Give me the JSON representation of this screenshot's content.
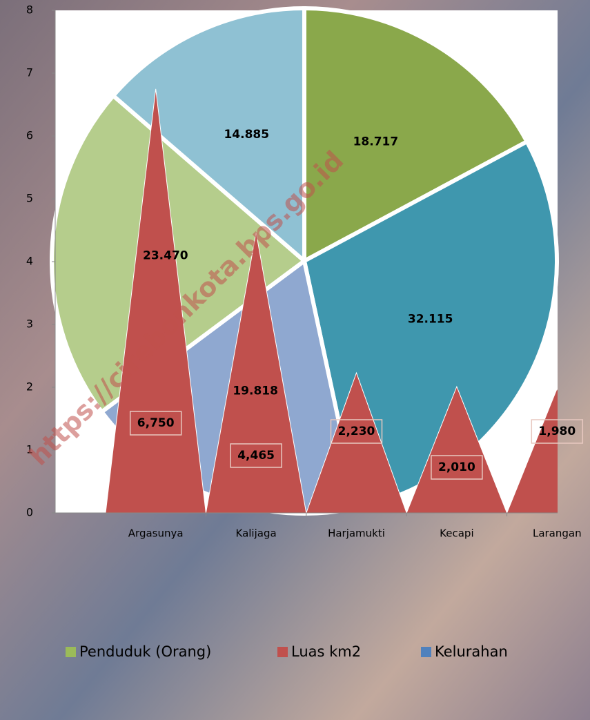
{
  "chart_data": [
    {
      "type": "pie",
      "values": [
        18717,
        32115,
        19818,
        23470,
        14885
      ],
      "value_labels": [
        "18.717",
        "32.115",
        "19.818",
        "23.470",
        "14.885"
      ],
      "colors": [
        "#8aa84b",
        "#3f97ae",
        "#8fa8d0",
        "#b5cd8c",
        "#8fc1d3"
      ]
    },
    {
      "type": "triangle",
      "categories": [
        "Argasunya",
        "Kalijaga",
        "Harjamukti",
        "Kecapi",
        "Larangan"
      ],
      "series": [
        {
          "name": "Luas km2",
          "color": "#c0504d",
          "values": [
            6.75,
            4.465,
            2.23,
            2.01,
            1.98
          ],
          "value_labels": [
            "6,750",
            "4,465",
            "2,230",
            "2,010",
            "1,980"
          ]
        }
      ],
      "ylim": [
        0,
        8
      ],
      "yticks": [
        0,
        1,
        2,
        3,
        4,
        5,
        6,
        7,
        8
      ]
    }
  ],
  "legend": [
    {
      "name": "Penduduk (Orang)",
      "color": "#9bbb59"
    },
    {
      "name": "Luas km2",
      "color": "#c0504d"
    },
    {
      "name": "Kelurahan",
      "color": "#4f81bd"
    }
  ],
  "watermark": "https://cirebonkota.bps.go.id"
}
